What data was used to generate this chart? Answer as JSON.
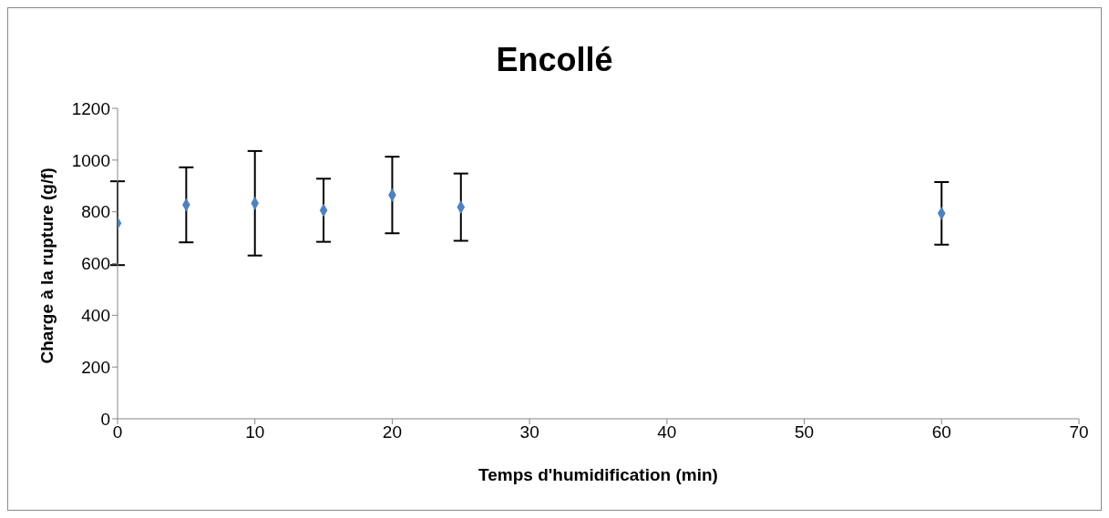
{
  "chart_data": {
    "type": "scatter",
    "title": "Encollé",
    "xlabel": "Temps d'humidification (min)",
    "ylabel": "Charge à la rupture (g/f)",
    "x": [
      0,
      5,
      10,
      15,
      20,
      25,
      60
    ],
    "values": [
      756,
      827,
      833,
      806,
      865,
      818,
      794
    ],
    "errors": [
      162,
      145,
      202,
      122,
      148,
      130,
      121
    ],
    "color": "#4f81bd",
    "marker": "diamond",
    "grid": false,
    "legend": false,
    "xlim": [
      0,
      70
    ],
    "xticks": [
      0,
      10,
      20,
      30,
      40,
      50,
      60,
      70
    ],
    "ylim": [
      0,
      1200
    ],
    "yticks": [
      0,
      200,
      400,
      600,
      800,
      1000,
      1200
    ]
  }
}
